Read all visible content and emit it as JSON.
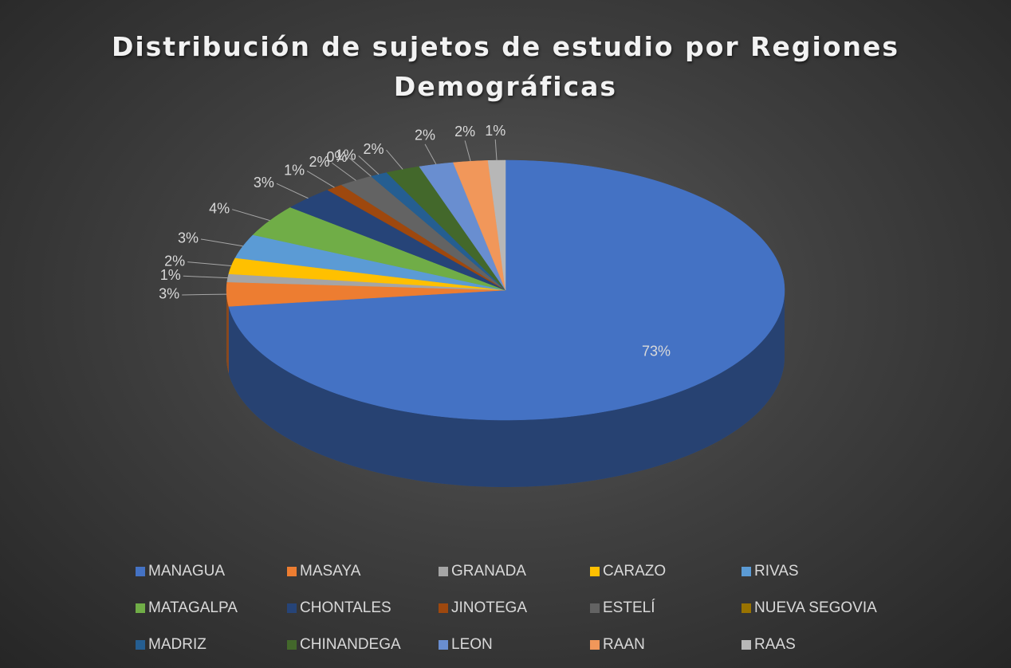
{
  "chart_data": {
    "type": "pie3d",
    "title": "Distribución de sujetos de estudio por Regiones Demográficas",
    "categories": [
      "MANAGUA",
      "MASAYA",
      "GRANADA",
      "CARAZO",
      "RIVAS",
      "MATAGALPA",
      "CHONTALES",
      "JINOTEGA",
      "ESTELÍ",
      "NUEVA SEGOVIA",
      "MADRIZ",
      "CHINANDEGA",
      "LEON",
      "RAAN",
      "RAAS"
    ],
    "values": [
      73,
      3,
      1,
      2,
      3,
      4,
      3,
      1,
      2,
      0,
      1,
      2,
      2,
      2,
      1
    ],
    "value_labels": [
      "73%",
      "3%",
      "1%",
      "2%",
      "3%",
      "4%",
      "3%",
      "1%",
      "2%",
      "0%",
      "1%",
      "2%",
      "2%",
      "2%",
      "1%"
    ],
    "colors": [
      "#4472c4",
      "#ed7d31",
      "#a5a5a5",
      "#ffc000",
      "#5b9bd5",
      "#70ad47",
      "#264478",
      "#9e480e",
      "#636363",
      "#997300",
      "#255e91",
      "#43682b",
      "#698ed0",
      "#f1975a",
      "#b7b7b7"
    ],
    "legend": "bottom"
  }
}
